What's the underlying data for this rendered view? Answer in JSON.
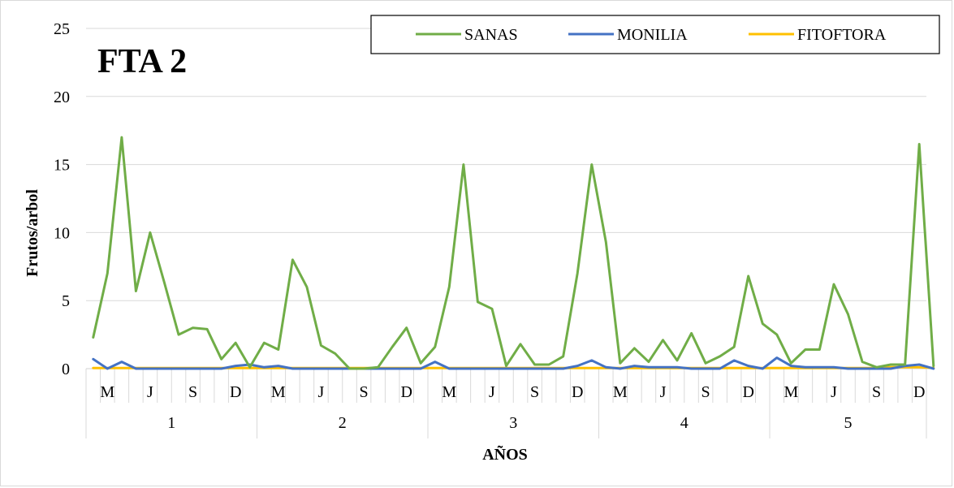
{
  "chart_data": {
    "type": "line",
    "title": "FTA 2",
    "xlabel": "AÑOS",
    "ylabel": "Frutos/arbol",
    "ylim": [
      0,
      25
    ],
    "yticks": [
      "0",
      "5",
      "10",
      "15",
      "20",
      "25"
    ],
    "years": [
      "1",
      "2",
      "3",
      "4",
      "5"
    ],
    "month_labels": [
      "",
      "M",
      "",
      "",
      "J",
      "",
      "",
      "S",
      "",
      "",
      "D",
      "",
      "",
      "M",
      "",
      "",
      "J",
      "",
      "",
      "S",
      "",
      "",
      "D",
      "",
      "",
      "M",
      "",
      "",
      "J",
      "",
      "",
      "S",
      "",
      "",
      "D",
      "",
      "",
      "M",
      "",
      "",
      "J",
      "",
      "",
      "S",
      "",
      "",
      "D",
      "",
      "",
      "M",
      "",
      "",
      "J",
      "",
      "",
      "S",
      "",
      "",
      "D"
    ],
    "grid": "horizontal",
    "legend_position": "top-right",
    "series": [
      {
        "name": "SANAS",
        "color": "#70ad47",
        "values": [
          2.3,
          7.0,
          17.0,
          5.7,
          10.0,
          6.3,
          2.5,
          3.0,
          2.9,
          0.7,
          1.9,
          0.1,
          1.9,
          1.4,
          8.0,
          6.0,
          1.7,
          1.1,
          0.0,
          0.0,
          0.1,
          1.6,
          3.0,
          0.4,
          1.6,
          6.0,
          15.0,
          4.9,
          4.4,
          0.2,
          1.8,
          0.3,
          0.3,
          0.9,
          7.0,
          15.0,
          9.3,
          0.4,
          1.5,
          0.5,
          2.1,
          0.6,
          2.6,
          0.4,
          0.9,
          1.6,
          6.8,
          3.3,
          2.5,
          0.4,
          1.4,
          1.4,
          6.2,
          4.0,
          0.5,
          0.1,
          0.3,
          0.3,
          16.5,
          0.2
        ]
      },
      {
        "name": "MONILIA",
        "color": "#4472c4",
        "values": [
          0.7,
          0.0,
          0.5,
          0.0,
          0.0,
          0.0,
          0.0,
          0.0,
          0.0,
          0.0,
          0.2,
          0.3,
          0.1,
          0.2,
          0.0,
          0.0,
          0.0,
          0.0,
          0.0,
          0.0,
          0.0,
          0.0,
          0.0,
          0.0,
          0.5,
          0.0,
          0.0,
          0.0,
          0.0,
          0.0,
          0.0,
          0.0,
          0.0,
          0.0,
          0.2,
          0.6,
          0.1,
          0.0,
          0.2,
          0.1,
          0.1,
          0.1,
          0.0,
          0.0,
          0.0,
          0.6,
          0.2,
          0.0,
          0.8,
          0.2,
          0.1,
          0.1,
          0.1,
          0.0,
          0.0,
          0.0,
          0.0,
          0.2,
          0.3,
          0.0
        ]
      },
      {
        "name": "FITOFTORA",
        "color": "#ffc000",
        "values": [
          0.05,
          0.05,
          0.05,
          0.05,
          0.05,
          0.05,
          0.05,
          0.05,
          0.05,
          0.05,
          0.05,
          0.05,
          0.05,
          0.05,
          0.05,
          0.05,
          0.05,
          0.05,
          0.05,
          0.05,
          0.05,
          0.05,
          0.05,
          0.05,
          0.05,
          0.05,
          0.05,
          0.05,
          0.05,
          0.05,
          0.05,
          0.05,
          0.05,
          0.05,
          0.05,
          0.05,
          0.05,
          0.05,
          0.05,
          0.05,
          0.05,
          0.05,
          0.05,
          0.05,
          0.05,
          0.05,
          0.05,
          0.05,
          0.05,
          0.05,
          0.05,
          0.05,
          0.05,
          0.05,
          0.05,
          0.05,
          0.1,
          0.1,
          0.1,
          0.05
        ]
      }
    ]
  }
}
